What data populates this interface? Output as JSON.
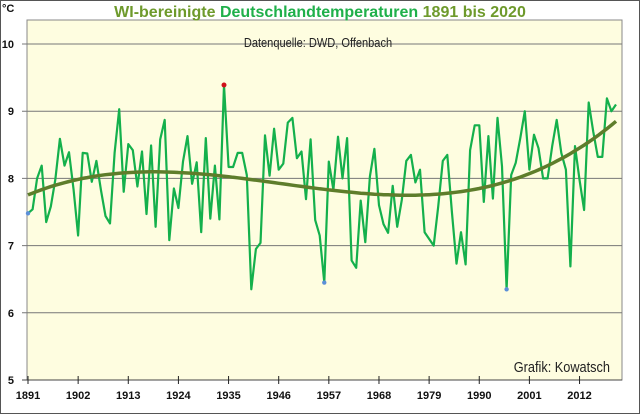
{
  "chart_data": {
    "type": "line",
    "title_parts": [
      "WI-bereinigte",
      "Deutschlandtemperaturen",
      "1891 bis 2020"
    ],
    "subtitle": "Datenquelle: DWD, Offenbach",
    "credit": "Grafik: Kowatsch",
    "ylabel": "°C",
    "ylim": [
      5,
      10
    ],
    "yticks": [
      "5",
      "6",
      "7",
      "8",
      "9",
      "10"
    ],
    "xlim": [
      1891,
      2020
    ],
    "xticks": [
      "1891",
      "1902",
      "1913",
      "1924",
      "1935",
      "1946",
      "1957",
      "1968",
      "1979",
      "1990",
      "2001",
      "2012"
    ],
    "grid": "horizontal",
    "trendline": "polynomial",
    "colors": {
      "series": "#14b04c",
      "trend": "#5e7d2b",
      "max_marker": "#d0101a",
      "min_marker": "#5b8fd8",
      "plot_bg": "#fefde0",
      "title_a": "#6e9a2c",
      "title_b": "#1fb04a"
    },
    "x": [
      1891,
      1892,
      1893,
      1894,
      1895,
      1896,
      1897,
      1898,
      1899,
      1900,
      1901,
      1902,
      1903,
      1904,
      1905,
      1906,
      1907,
      1908,
      1909,
      1910,
      1911,
      1912,
      1913,
      1914,
      1915,
      1916,
      1917,
      1918,
      1919,
      1920,
      1921,
      1922,
      1923,
      1924,
      1925,
      1926,
      1927,
      1928,
      1929,
      1930,
      1931,
      1932,
      1933,
      1934,
      1935,
      1936,
      1937,
      1938,
      1939,
      1940,
      1941,
      1942,
      1943,
      1944,
      1945,
      1946,
      1947,
      1948,
      1949,
      1950,
      1951,
      1952,
      1953,
      1954,
      1955,
      1956,
      1957,
      1958,
      1959,
      1960,
      1961,
      1962,
      1963,
      1964,
      1965,
      1966,
      1967,
      1968,
      1969,
      1970,
      1971,
      1972,
      1973,
      1974,
      1975,
      1976,
      1977,
      1978,
      1979,
      1980,
      1981,
      1982,
      1983,
      1984,
      1985,
      1986,
      1987,
      1988,
      1989,
      1990,
      1991,
      1992,
      1993,
      1994,
      1995,
      1996,
      1997,
      1998,
      1999,
      2000,
      2001,
      2002,
      2003,
      2004,
      2005,
      2006,
      2007,
      2008,
      2009,
      2010,
      2011,
      2012,
      2013,
      2014,
      2015,
      2016,
      2017,
      2018,
      2019,
      2020
    ],
    "values": [
      7.48,
      7.54,
      8.0,
      8.19,
      7.35,
      7.58,
      7.98,
      8.59,
      8.19,
      8.39,
      7.83,
      7.15,
      8.38,
      8.37,
      7.95,
      8.26,
      7.83,
      7.44,
      7.33,
      8.38,
      9.03,
      7.8,
      8.51,
      8.42,
      7.88,
      8.4,
      7.47,
      8.49,
      7.28,
      8.58,
      8.87,
      7.08,
      7.85,
      7.56,
      8.25,
      8.63,
      7.92,
      8.24,
      7.2,
      8.6,
      7.4,
      8.19,
      7.39,
      9.39,
      8.17,
      8.17,
      8.38,
      8.38,
      8.05,
      6.35,
      6.95,
      7.04,
      8.64,
      8.04,
      8.74,
      8.13,
      8.22,
      8.83,
      8.9,
      8.3,
      8.4,
      7.69,
      8.58,
      7.38,
      7.15,
      6.45,
      8.25,
      7.83,
      8.62,
      8.0,
      8.6,
      6.78,
      6.67,
      7.67,
      7.05,
      8.03,
      8.44,
      7.6,
      7.32,
      7.19,
      7.89,
      7.28,
      7.68,
      8.26,
      8.35,
      7.94,
      8.13,
      7.2,
      7.1,
      7.0,
      7.58,
      8.26,
      8.35,
      7.5,
      6.73,
      7.2,
      6.72,
      8.42,
      8.79,
      8.79,
      7.65,
      8.63,
      7.7,
      8.9,
      8.18,
      6.35,
      8.05,
      8.23,
      8.6,
      9.0,
      8.13,
      8.65,
      8.45,
      8.0,
      8.0,
      8.48,
      8.87,
      8.38,
      8.13,
      6.69,
      8.48,
      7.98,
      7.53,
      9.13,
      8.7,
      8.32,
      8.32,
      9.19,
      9.0,
      9.1
    ]
  }
}
